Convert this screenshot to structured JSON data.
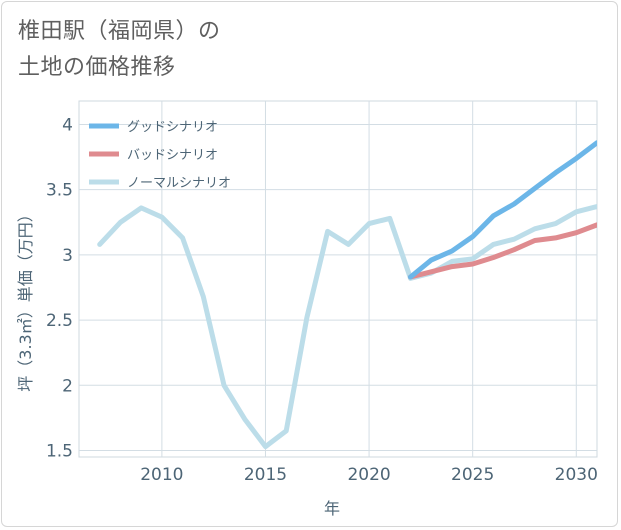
{
  "chart_data": {
    "type": "line",
    "title": "椎田駅（福岡県）の\n土地の価格推移",
    "xlabel": "年",
    "ylabel": "坪（3.3㎡）単価（万円）",
    "xlim": [
      2006,
      2031
    ],
    "ylim": [
      1.45,
      4.18
    ],
    "x_ticks": [
      2010,
      2015,
      2020,
      2025,
      2030
    ],
    "y_ticks": [
      1.5,
      2,
      2.5,
      3,
      3.5,
      4
    ],
    "x_tick_labels": [
      "2010",
      "2015",
      "2020",
      "2025",
      "2030"
    ],
    "y_tick_labels": [
      "1.5",
      "2",
      "2.5",
      "3",
      "3.5",
      "4"
    ],
    "legend_position": "top-left",
    "series": [
      {
        "name": "グッドシナリオ",
        "color": "#6cb6e8",
        "x": [
          2022,
          2023,
          2024,
          2025,
          2026,
          2027,
          2028,
          2029,
          2030,
          2031
        ],
        "values": [
          2.83,
          2.96,
          3.03,
          3.14,
          3.3,
          3.39,
          3.51,
          3.63,
          3.74,
          3.86
        ]
      },
      {
        "name": "バッドシナリオ",
        "color": "#df8b8f",
        "x": [
          2022,
          2023,
          2024,
          2025,
          2026,
          2027,
          2028,
          2029,
          2030,
          2031
        ],
        "values": [
          2.83,
          2.87,
          2.91,
          2.93,
          2.98,
          3.04,
          3.11,
          3.13,
          3.17,
          3.23
        ]
      },
      {
        "name": "ノーマルシナリオ",
        "color": "#bcdde9",
        "x": [
          2007,
          2008,
          2009,
          2010,
          2011,
          2012,
          2013,
          2014,
          2015,
          2016,
          2017,
          2018,
          2019,
          2020,
          2021,
          2022,
          2023,
          2024,
          2025,
          2026,
          2027,
          2028,
          2029,
          2030,
          2031
        ],
        "values": [
          3.08,
          3.25,
          3.36,
          3.29,
          3.13,
          2.68,
          2.0,
          1.74,
          1.53,
          1.65,
          2.52,
          3.18,
          3.08,
          3.24,
          3.28,
          2.82,
          2.86,
          2.95,
          2.97,
          3.08,
          3.12,
          3.2,
          3.24,
          3.33,
          3.37
        ]
      }
    ]
  }
}
